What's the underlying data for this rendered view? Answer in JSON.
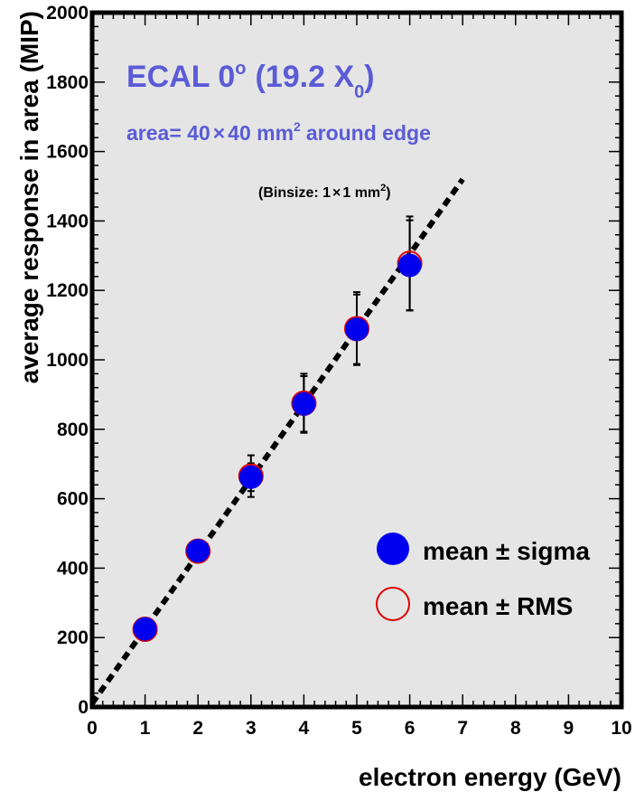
{
  "chart_data": {
    "type": "scatter",
    "title": "ECAL 0",
    "title_superscript": "o",
    "title_paren": "(19.2 X",
    "title_subscript": "0",
    "title_close": ")",
    "subtitle": "area= 40",
    "subtitle_times": "×",
    "subtitle_rest": "40 mm",
    "subtitle_superscript": "2",
    "subtitle_end": "around edge",
    "binsize_label": "(Binsize: 1",
    "binsize_times": "×",
    "binsize_rest": "1 mm",
    "binsize_superscript": "2",
    "binsize_close": ")",
    "xlabel": "electron energy (GeV)",
    "ylabel": "average response in area (MIP)",
    "xlim": [
      0,
      10
    ],
    "ylim": [
      0,
      2000
    ],
    "xticks": [
      "0",
      "1",
      "2",
      "3",
      "4",
      "5",
      "6",
      "7",
      "8",
      "9",
      "10"
    ],
    "yticks": [
      "0",
      "200",
      "400",
      "600",
      "800",
      "1000",
      "1200",
      "1400",
      "1600",
      "1800",
      "2000"
    ],
    "grid": false,
    "legend_position": "bottom-right",
    "series": [
      {
        "name": "mean ± sigma",
        "marker": "filled-circle",
        "color": "#0000ee",
        "x": [
          1,
          2,
          3,
          4,
          5,
          6
        ],
        "y": [
          225,
          450,
          662,
          873,
          1088,
          1272
        ],
        "yerr": [
          8,
          10,
          40,
          80,
          100,
          130
        ]
      },
      {
        "name": "mean ± RMS",
        "marker": "open-circle",
        "color": "#e00000",
        "x": [
          1,
          2,
          3,
          4,
          5,
          6
        ],
        "y": [
          224,
          449,
          665,
          875,
          1090,
          1278
        ],
        "yerr": [
          12,
          15,
          60,
          85,
          105,
          135
        ]
      }
    ],
    "fit_line": {
      "style": "dashed",
      "color": "#000000",
      "x": [
        0,
        7
      ],
      "y": [
        10,
        1520
      ]
    },
    "colors": {
      "frame_bg": "#e5e5e5",
      "title": "#5b5bd6",
      "axis": "#000000"
    }
  }
}
